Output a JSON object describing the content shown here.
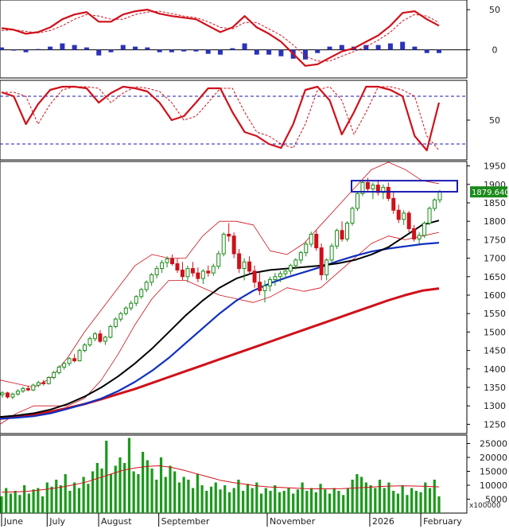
{
  "colors": {
    "macd_line": "#d0101a",
    "signal_line": "#d0101a",
    "hist_pos": "#2b33b8",
    "hist_neg": "#2b33b8",
    "stoch_k": "#d0101a",
    "stoch_ref": "#1a1ab0",
    "candle_up": "#1a8a1a",
    "candle_down": "#d0101a",
    "ma_short": "#000000",
    "ma_mid": "#1030c0",
    "ma_long": "#d0101a",
    "bollinger": "#d0101a",
    "volume_bar": "#1a9a1a",
    "volume_ma": "#d0101a",
    "highlight_box": "#1a1ab0",
    "price_badge": "#1a8a1a",
    "grid": "#000000"
  },
  "chart_data": [
    {
      "type": "line",
      "panel": "macd",
      "y_ticks": [
        "50",
        "0"
      ],
      "tick_values": [
        50,
        0
      ],
      "ylim": [
        -35,
        62
      ],
      "x": [
        0,
        5,
        10,
        15,
        20,
        25,
        30,
        35,
        40,
        45,
        50,
        55,
        60,
        65,
        70,
        75,
        80,
        85,
        90,
        95,
        100,
        105,
        110,
        115,
        120,
        125,
        130,
        135,
        140,
        145,
        150,
        155,
        160,
        165,
        170,
        175,
        180
      ],
      "series": [
        {
          "values": [
            27,
            25,
            20,
            22,
            28,
            38,
            44,
            47,
            35,
            35,
            44,
            48,
            50,
            45,
            42,
            40,
            38,
            30,
            22,
            28,
            42,
            28,
            20,
            10,
            -5,
            -20,
            -18,
            -10,
            -2,
            2,
            10,
            18,
            30,
            46,
            48,
            38,
            30
          ]
        },
        {
          "values": [
            24,
            25,
            23,
            21,
            24,
            30,
            38,
            44,
            42,
            38,
            38,
            44,
            47,
            48,
            45,
            42,
            40,
            35,
            28,
            26,
            34,
            34,
            26,
            18,
            6,
            -8,
            -14,
            -14,
            -8,
            -2,
            4,
            12,
            22,
            36,
            44,
            42,
            34
          ]
        }
      ],
      "histogram": [
        3,
        0,
        -3,
        1,
        4,
        8,
        6,
        3,
        -7,
        -3,
        6,
        4,
        3,
        -3,
        -3,
        -2,
        -2,
        -5,
        -6,
        2,
        8,
        -6,
        -6,
        -8,
        -11,
        -12,
        -4,
        4,
        6,
        4,
        6,
        6,
        8,
        10,
        4,
        -4,
        -4
      ]
    },
    {
      "type": "line",
      "panel": "stochastic",
      "y_ticks": [
        "50"
      ],
      "tick_values": [
        50
      ],
      "reference_lines": [
        80,
        20
      ],
      "ylim": [
        0,
        100
      ],
      "x": [
        0,
        5,
        10,
        15,
        20,
        25,
        30,
        35,
        40,
        45,
        50,
        55,
        60,
        65,
        70,
        75,
        80,
        85,
        90,
        95,
        100,
        105,
        110,
        115,
        120,
        125,
        130,
        135,
        140,
        145,
        150,
        155,
        160,
        165,
        170,
        175,
        180
      ],
      "series": [
        {
          "values": [
            85,
            80,
            45,
            70,
            88,
            92,
            92,
            90,
            72,
            84,
            92,
            90,
            86,
            72,
            50,
            55,
            72,
            90,
            90,
            60,
            35,
            30,
            20,
            15,
            45,
            88,
            92,
            75,
            32,
            60,
            92,
            92,
            88,
            80,
            30,
            12,
            72
          ]
        }
      ]
    },
    {
      "type": "candlestick",
      "panel": "price",
      "y_ticks": [
        "1950",
        "1900",
        "1850",
        "1800",
        "1750",
        "1700",
        "1650",
        "1600",
        "1550",
        "1500",
        "1450",
        "1400",
        "1350",
        "1300",
        "1250"
      ],
      "tick_values": [
        1950,
        1900,
        1850,
        1800,
        1750,
        1700,
        1650,
        1600,
        1550,
        1500,
        1450,
        1400,
        1350,
        1300,
        1250
      ],
      "ylim": [
        1225,
        1962
      ],
      "last_price": "1879.640",
      "ohlc": [
        [
          1330,
          1340,
          1322,
          1335
        ],
        [
          1335,
          1338,
          1320,
          1324
        ],
        [
          1324,
          1336,
          1318,
          1332
        ],
        [
          1332,
          1345,
          1328,
          1340
        ],
        [
          1340,
          1352,
          1335,
          1347
        ],
        [
          1347,
          1355,
          1340,
          1343
        ],
        [
          1343,
          1360,
          1340,
          1356
        ],
        [
          1356,
          1368,
          1350,
          1363
        ],
        [
          1363,
          1370,
          1355,
          1360
        ],
        [
          1360,
          1380,
          1358,
          1377
        ],
        [
          1377,
          1395,
          1372,
          1390
        ],
        [
          1390,
          1410,
          1385,
          1405
        ],
        [
          1405,
          1420,
          1398,
          1415
        ],
        [
          1415,
          1432,
          1408,
          1428
        ],
        [
          1428,
          1440,
          1418,
          1422
        ],
        [
          1422,
          1455,
          1420,
          1450
        ],
        [
          1450,
          1470,
          1445,
          1465
        ],
        [
          1465,
          1488,
          1460,
          1482
        ],
        [
          1482,
          1500,
          1475,
          1495
        ],
        [
          1495,
          1505,
          1470,
          1475
        ],
        [
          1475,
          1490,
          1465,
          1486
        ],
        [
          1486,
          1520,
          1482,
          1515
        ],
        [
          1515,
          1540,
          1510,
          1535
        ],
        [
          1535,
          1555,
          1528,
          1550
        ],
        [
          1550,
          1570,
          1545,
          1565
        ],
        [
          1565,
          1585,
          1558,
          1578
        ],
        [
          1578,
          1600,
          1570,
          1596
        ],
        [
          1596,
          1620,
          1590,
          1615
        ],
        [
          1615,
          1640,
          1608,
          1635
        ],
        [
          1635,
          1660,
          1625,
          1655
        ],
        [
          1655,
          1680,
          1645,
          1672
        ],
        [
          1672,
          1695,
          1660,
          1688
        ],
        [
          1688,
          1705,
          1675,
          1698
        ],
        [
          1698,
          1710,
          1680,
          1685
        ],
        [
          1685,
          1700,
          1660,
          1668
        ],
        [
          1668,
          1690,
          1640,
          1650
        ],
        [
          1650,
          1680,
          1635,
          1672
        ],
        [
          1672,
          1690,
          1650,
          1660
        ],
        [
          1660,
          1675,
          1635,
          1645
        ],
        [
          1645,
          1670,
          1630,
          1665
        ],
        [
          1665,
          1680,
          1650,
          1660
        ],
        [
          1660,
          1685,
          1652,
          1678
        ],
        [
          1678,
          1720,
          1670,
          1712
        ],
        [
          1712,
          1770,
          1705,
          1765
        ],
        [
          1765,
          1795,
          1745,
          1760
        ],
        [
          1760,
          1770,
          1700,
          1712
        ],
        [
          1712,
          1725,
          1660,
          1672
        ],
        [
          1672,
          1700,
          1640,
          1690
        ],
        [
          1690,
          1705,
          1655,
          1665
        ],
        [
          1665,
          1680,
          1620,
          1635
        ],
        [
          1635,
          1660,
          1600,
          1612
        ],
        [
          1612,
          1640,
          1580,
          1625
        ],
        [
          1625,
          1650,
          1610,
          1642
        ],
        [
          1642,
          1660,
          1625,
          1650
        ],
        [
          1650,
          1665,
          1635,
          1658
        ],
        [
          1658,
          1672,
          1645,
          1665
        ],
        [
          1665,
          1685,
          1655,
          1680
        ],
        [
          1680,
          1700,
          1670,
          1695
        ],
        [
          1695,
          1720,
          1685,
          1715
        ],
        [
          1715,
          1745,
          1705,
          1738
        ],
        [
          1738,
          1772,
          1730,
          1765
        ],
        [
          1765,
          1775,
          1720,
          1728
        ],
        [
          1728,
          1740,
          1640,
          1655
        ],
        [
          1655,
          1700,
          1640,
          1695
        ],
        [
          1695,
          1740,
          1688,
          1733
        ],
        [
          1733,
          1780,
          1725,
          1775
        ],
        [
          1775,
          1800,
          1745,
          1752
        ],
        [
          1752,
          1800,
          1745,
          1795
        ],
        [
          1795,
          1840,
          1788,
          1835
        ],
        [
          1835,
          1880,
          1828,
          1875
        ],
        [
          1875,
          1912,
          1868,
          1905
        ],
        [
          1905,
          1918,
          1880,
          1888
        ],
        [
          1888,
          1905,
          1860,
          1898
        ],
        [
          1898,
          1910,
          1870,
          1878
        ],
        [
          1878,
          1900,
          1860,
          1892
        ],
        [
          1892,
          1905,
          1855,
          1862
        ],
        [
          1862,
          1880,
          1820,
          1830
        ],
        [
          1830,
          1845,
          1795,
          1805
        ],
        [
          1805,
          1830,
          1790,
          1822
        ],
        [
          1822,
          1828,
          1770,
          1780
        ],
        [
          1780,
          1790,
          1745,
          1752
        ],
        [
          1752,
          1770,
          1738,
          1762
        ],
        [
          1762,
          1800,
          1755,
          1795
        ],
        [
          1795,
          1840,
          1790,
          1835
        ],
        [
          1835,
          1862,
          1828,
          1858
        ],
        [
          1858,
          1885,
          1850,
          1879.64
        ]
      ],
      "series": [
        {
          "name": "ma_short",
          "values": [
            1270,
            1274,
            1280,
            1290,
            1305,
            1325,
            1350,
            1380,
            1415,
            1455,
            1500,
            1545,
            1585,
            1620,
            1645,
            1660,
            1668,
            1672,
            1676,
            1680,
            1686,
            1695,
            1710,
            1730,
            1760,
            1790,
            1802
          ]
        },
        {
          "name": "ma_mid",
          "values": [
            1265,
            1268,
            1272,
            1280,
            1292,
            1305,
            1320,
            1340,
            1365,
            1395,
            1430,
            1470,
            1510,
            1550,
            1585,
            1612,
            1632,
            1648,
            1662,
            1676,
            1692,
            1706,
            1718,
            1726,
            1732,
            1738,
            1742
          ]
        },
        {
          "name": "ma_long",
          "values": [
            1265,
            1270,
            1276,
            1284,
            1294,
            1305,
            1318,
            1332,
            1346,
            1362,
            1378,
            1394,
            1410,
            1426,
            1442,
            1458,
            1474,
            1490,
            1506,
            1522,
            1538,
            1554,
            1570,
            1586,
            1600,
            1612,
            1618
          ]
        },
        {
          "name": "bb_upper",
          "values": [
            1370,
            1360,
            1350,
            1375,
            1430,
            1500,
            1560,
            1620,
            1680,
            1710,
            1700,
            1700,
            1760,
            1800,
            1800,
            1790,
            1720,
            1710,
            1740,
            1790,
            1840,
            1890,
            1940,
            1960,
            1940,
            1910,
            1902
          ]
        },
        {
          "name": "bb_lower",
          "values": [
            1250,
            1280,
            1300,
            1300,
            1300,
            1320,
            1370,
            1440,
            1520,
            1590,
            1640,
            1640,
            1620,
            1600,
            1590,
            1580,
            1595,
            1620,
            1610,
            1620,
            1660,
            1700,
            1740,
            1760,
            1750,
            1760,
            1770
          ]
        }
      ],
      "highlight_range": [
        1880,
        1910
      ]
    },
    {
      "type": "bar",
      "panel": "volume",
      "y_ticks": [
        "25000",
        "20000",
        "15000",
        "10000",
        "5000"
      ],
      "tick_values": [
        25000,
        20000,
        15000,
        10000,
        5000
      ],
      "ylim": [
        0,
        28000
      ],
      "unit_label": "x100000",
      "values": [
        6000,
        9000,
        7000,
        8000,
        6500,
        10000,
        7000,
        8500,
        9000,
        6000,
        11000,
        9500,
        12000,
        10000,
        14000,
        8000,
        11000,
        9000,
        13000,
        10500,
        15000,
        18000,
        16000,
        26000,
        14000,
        17000,
        20000,
        18000,
        27000,
        15000,
        14000,
        22000,
        19000,
        16000,
        12000,
        20000,
        13000,
        17000,
        15000,
        11000,
        13000,
        12000,
        9000,
        14000,
        10000,
        8000,
        9500,
        11000,
        8500,
        10000,
        7500,
        9000,
        12000,
        8000,
        10500,
        9000,
        11000,
        7000,
        9000,
        8000,
        10000,
        7500,
        8000,
        9000,
        7000,
        8500,
        11000,
        8000,
        9000,
        7500,
        10500,
        8500,
        7000,
        9000,
        8000,
        6500,
        9000,
        12000,
        14000,
        13000,
        11000,
        10000,
        9000,
        12000,
        9000,
        11000,
        8000,
        7000,
        10000,
        6500,
        9000,
        8000,
        7500,
        11000,
        9000,
        12000,
        6000
      ],
      "ma": [
        7500,
        7600,
        7800,
        8200,
        8700,
        9400,
        10200,
        11200,
        12600,
        14000,
        15400,
        16200,
        16800,
        17000,
        16400,
        15400,
        14200,
        13000,
        11800,
        11000,
        10400,
        9800,
        9400,
        9200,
        9000,
        8800,
        8700,
        8700,
        8800,
        9000,
        9200,
        9500,
        9700,
        9800,
        9700,
        9600,
        9400
      ]
    }
  ],
  "x_axis": {
    "labels": [
      "June",
      "July",
      "August",
      "September",
      "November",
      "2026",
      "February"
    ],
    "positions": [
      0,
      10,
      21.3,
      34.5,
      58.3,
      80.8,
      92
    ]
  }
}
